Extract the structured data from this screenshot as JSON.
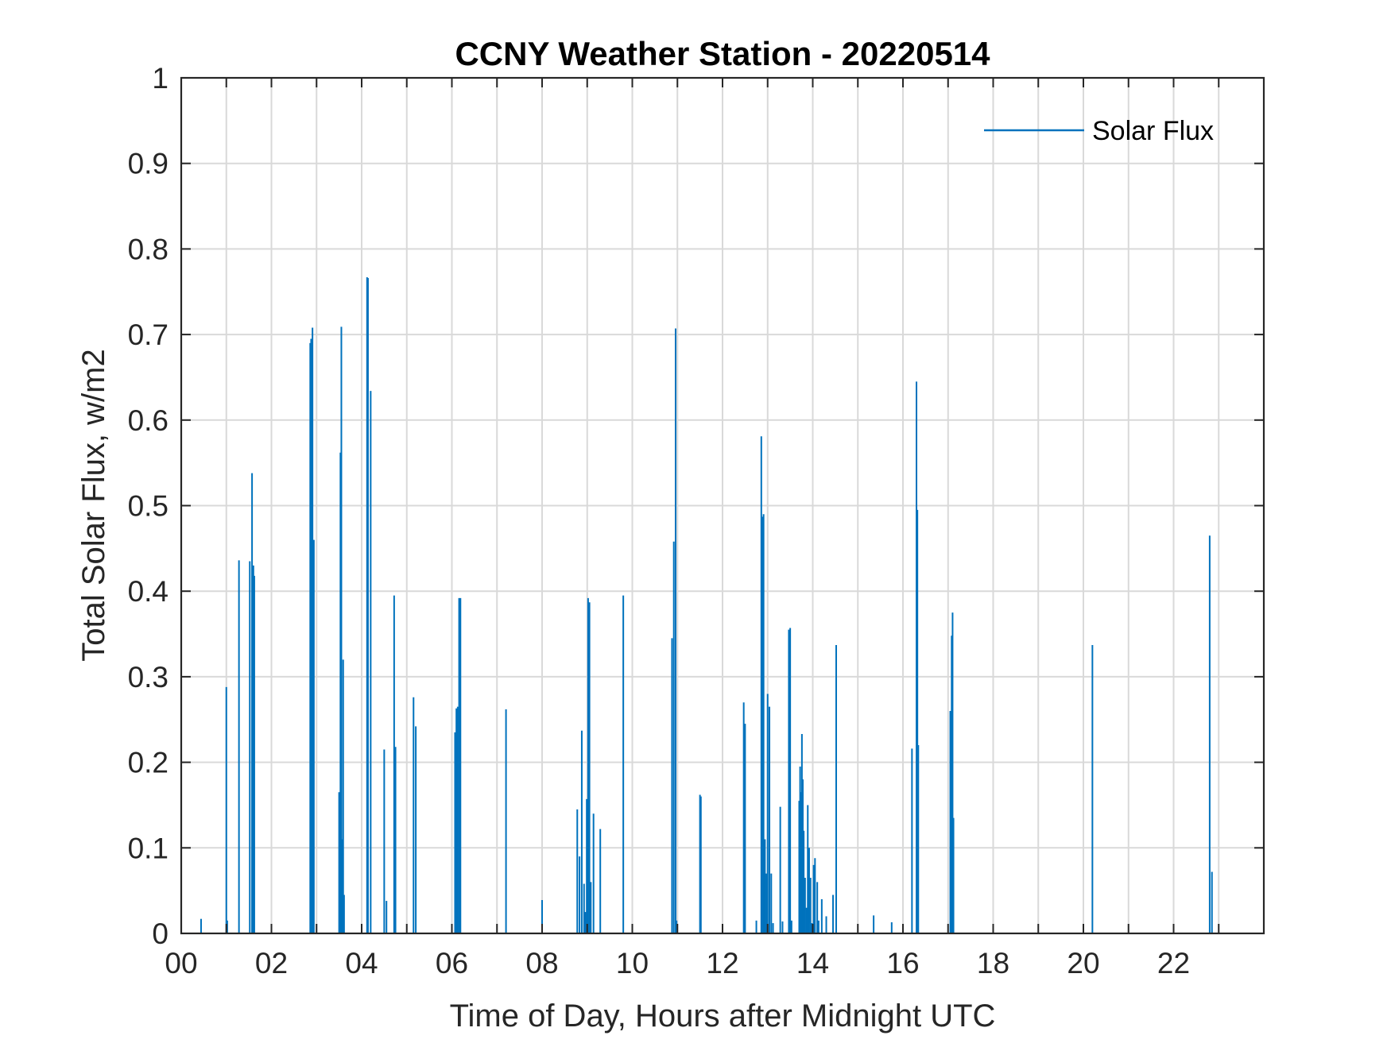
{
  "chart_data": {
    "type": "bar",
    "title": "CCNY Weather Station - 20220514",
    "xlabel": "Time of Day, Hours after Midnight UTC",
    "ylabel": "Total Solar Flux, w/m2",
    "xlim": [
      0,
      24
    ],
    "ylim": [
      0,
      1
    ],
    "grid": true,
    "legend_position": "top-right",
    "x_tick_values": [
      0,
      2,
      4,
      6,
      8,
      10,
      12,
      14,
      16,
      18,
      20,
      22
    ],
    "x_tick_labels": [
      "00",
      "02",
      "04",
      "06",
      "08",
      "10",
      "12",
      "14",
      "16",
      "18",
      "20",
      "22"
    ],
    "y_tick_values": [
      0,
      0.1,
      0.2,
      0.3,
      0.4,
      0.5,
      0.6,
      0.7,
      0.8,
      0.9,
      1
    ],
    "y_tick_labels": [
      "0",
      "0.1",
      "0.2",
      "0.3",
      "0.4",
      "0.5",
      "0.6",
      "0.7",
      "0.8",
      "0.9",
      "1"
    ],
    "series": [
      {
        "name": "Solar Flux",
        "color": "#0072BD",
        "x": [
          0.44,
          1.0,
          1.02,
          1.28,
          1.52,
          1.57,
          1.6,
          1.62,
          2.86,
          2.88,
          2.91,
          2.94,
          3.5,
          3.53,
          3.55,
          3.57,
          3.59,
          3.61,
          4.12,
          4.14,
          4.2,
          4.5,
          4.55,
          4.72,
          4.75,
          5.15,
          5.2,
          6.07,
          6.1,
          6.13,
          6.16,
          6.19,
          7.2,
          8.0,
          8.78,
          8.83,
          8.88,
          8.93,
          8.96,
          8.99,
          9.02,
          9.05,
          9.08,
          9.14,
          9.29,
          9.8,
          10.88,
          10.92,
          10.96,
          10.98,
          11.5,
          11.52,
          12.47,
          12.5,
          12.75,
          12.86,
          12.88,
          12.91,
          12.94,
          12.97,
          13.0,
          13.04,
          13.08,
          13.12,
          13.28,
          13.33,
          13.47,
          13.5,
          13.53,
          13.7,
          13.72,
          13.74,
          13.76,
          13.78,
          13.8,
          13.83,
          13.86,
          13.89,
          13.92,
          13.95,
          13.98,
          14.02,
          14.05,
          14.1,
          14.13,
          14.2,
          14.3,
          14.45,
          14.52,
          15.35,
          15.75,
          16.2,
          16.3,
          16.32,
          16.34,
          17.05,
          17.08,
          17.1,
          17.12,
          20.2,
          22.8,
          22.85
        ],
        "values": [
          0.017,
          0.288,
          0.015,
          0.436,
          0.435,
          0.538,
          0.43,
          0.418,
          0.69,
          0.695,
          0.708,
          0.46,
          0.165,
          0.562,
          0.709,
          0.11,
          0.32,
          0.045,
          0.767,
          0.766,
          0.634,
          0.215,
          0.038,
          0.395,
          0.218,
          0.276,
          0.242,
          0.235,
          0.263,
          0.265,
          0.392,
          0.392,
          0.262,
          0.039,
          0.145,
          0.09,
          0.237,
          0.058,
          0.025,
          0.157,
          0.392,
          0.387,
          0.06,
          0.14,
          0.122,
          0.395,
          0.345,
          0.458,
          0.707,
          0.015,
          0.162,
          0.16,
          0.27,
          0.245,
          0.015,
          0.581,
          0.487,
          0.49,
          0.11,
          0.07,
          0.28,
          0.265,
          0.07,
          0.012,
          0.148,
          0.014,
          0.355,
          0.357,
          0.015,
          0.155,
          0.195,
          0.165,
          0.233,
          0.18,
          0.12,
          0.065,
          0.03,
          0.15,
          0.1,
          0.065,
          0.012,
          0.08,
          0.088,
          0.06,
          0.015,
          0.04,
          0.02,
          0.045,
          0.337,
          0.021,
          0.013,
          0.216,
          0.645,
          0.495,
          0.22,
          0.26,
          0.348,
          0.375,
          0.135,
          0.337,
          0.465,
          0.072
        ]
      }
    ]
  }
}
